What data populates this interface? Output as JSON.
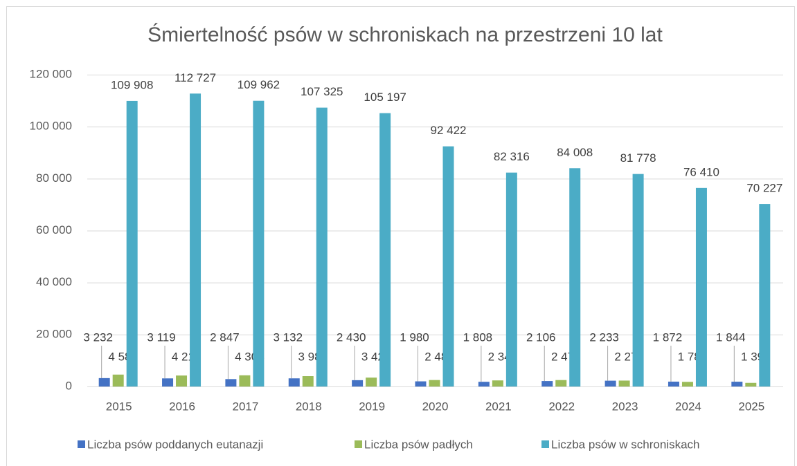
{
  "chart_data": {
    "type": "bar",
    "title": "Śmiertelność psów w schroniskach na przestrzeni 10 lat",
    "categories": [
      "2015",
      "2016",
      "2017",
      "2018",
      "2019",
      "2020",
      "2021",
      "2022",
      "2023",
      "2024",
      "2025"
    ],
    "series": [
      {
        "name": "Liczba psów poddanych eutanazji",
        "color": "#4472c4",
        "values": [
          3232,
          3119,
          2847,
          3132,
          2430,
          1980,
          1808,
          2106,
          2233,
          1872,
          1844
        ],
        "value_labels": [
          "3 232",
          "3 119",
          "2 847",
          "3 132",
          "2 430",
          "1 980",
          "1 808",
          "2 106",
          "2 233",
          "1 872",
          "1 844"
        ]
      },
      {
        "name": "Liczba psów padłych",
        "color": "#9bbb59",
        "values": [
          4582,
          4219,
          4304,
          3986,
          3422,
          2487,
          2340,
          2476,
          2275,
          1781,
          1399
        ],
        "value_labels": [
          "4 582",
          "4 219",
          "4 304",
          "3 986",
          "3 422",
          "2 487",
          "2 340",
          "2 476",
          "2 275",
          "1 781",
          "1 399"
        ]
      },
      {
        "name": "Liczba psów w schroniskach",
        "color": "#4bacc6",
        "values": [
          109908,
          112727,
          109962,
          107325,
          105197,
          92422,
          82316,
          84008,
          81778,
          76410,
          70227
        ],
        "value_labels": [
          "109 908",
          "112 727",
          "109 962",
          "107 325",
          "105 197",
          "92 422",
          "82 316",
          "84 008",
          "81 778",
          "76 410",
          "70 227"
        ]
      }
    ],
    "ylim": [
      0,
      120000
    ],
    "yticks": [
      0,
      {
        "value": 20000,
        "label": "20 000"
      },
      {
        "value": 40000,
        "label": "40 000"
      },
      {
        "value": 60000,
        "label": "60 000"
      },
      {
        "value": 80000,
        "label": "80 000"
      },
      {
        "value": 100000,
        "label": "100 000"
      },
      {
        "value": 120000,
        "label": "120 000"
      }
    ],
    "grid": true,
    "legend": "bottom"
  }
}
